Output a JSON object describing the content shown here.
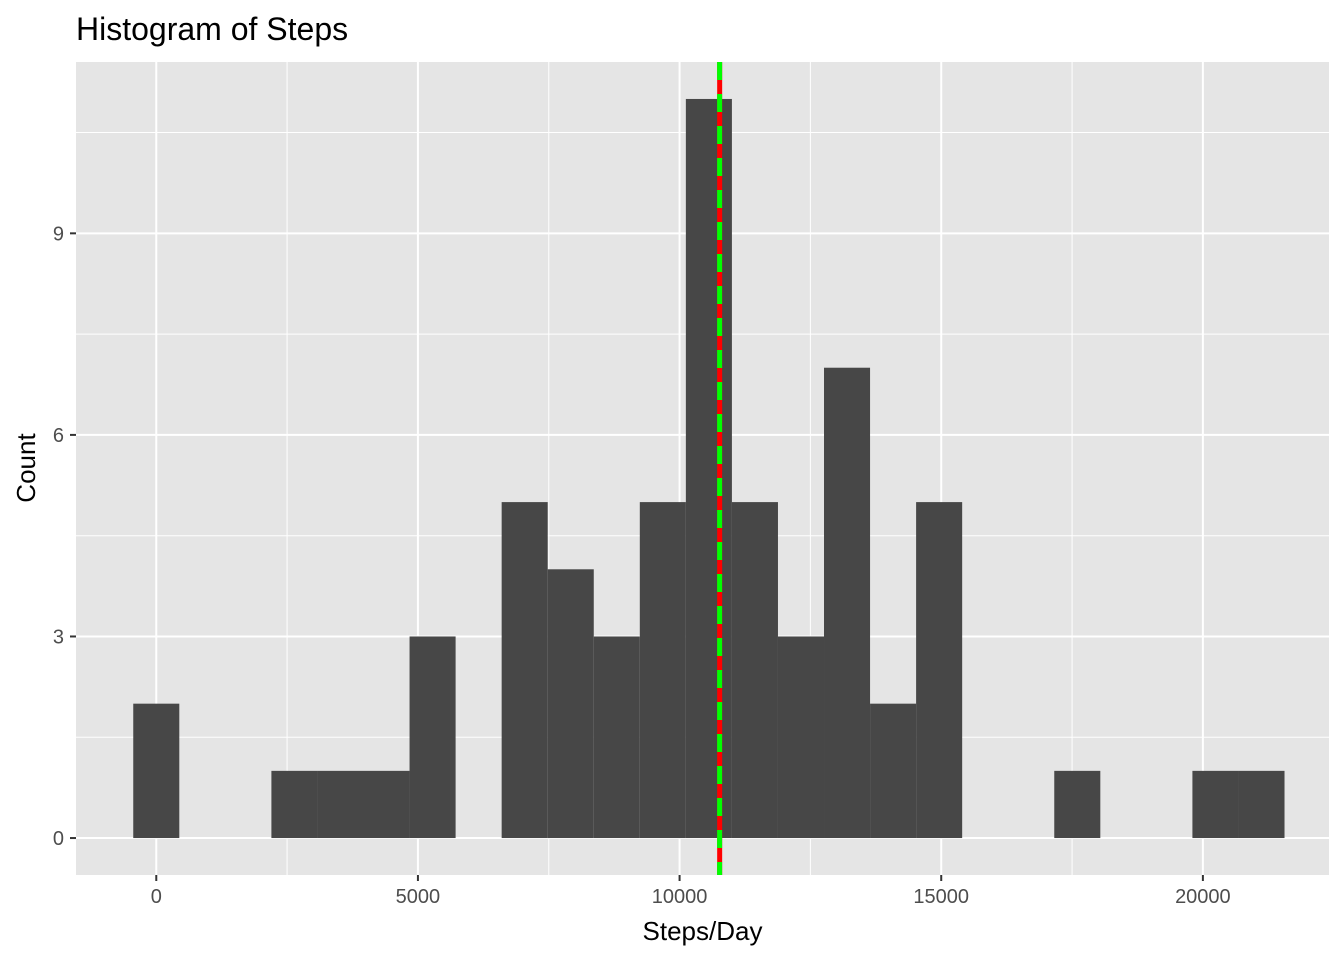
{
  "chart_data": {
    "type": "bar",
    "title": "Histogram of Steps",
    "xlabel": "Steps/Day",
    "ylabel": "Count",
    "xlim": [
      -1534,
      22410
    ],
    "ylim": [
      -0.55,
      11.55
    ],
    "x_ticks": [
      0,
      5000,
      10000,
      15000,
      20000
    ],
    "x_tick_labels": [
      "0",
      "5000",
      "10000",
      "15000",
      "20000"
    ],
    "y_ticks": [
      0,
      3,
      6,
      9
    ],
    "y_tick_labels": [
      "0",
      "3",
      "6",
      "9"
    ],
    "bin_width": 880,
    "bins": [
      {
        "x_start": -440,
        "x_end": 440,
        "count": 2
      },
      {
        "x_start": 2200,
        "x_end": 3080,
        "count": 1
      },
      {
        "x_start": 3080,
        "x_end": 3960,
        "count": 1
      },
      {
        "x_start": 3960,
        "x_end": 4840,
        "count": 1
      },
      {
        "x_start": 4840,
        "x_end": 5720,
        "count": 3
      },
      {
        "x_start": 6600,
        "x_end": 7480,
        "count": 5
      },
      {
        "x_start": 7480,
        "x_end": 8360,
        "count": 4
      },
      {
        "x_start": 8360,
        "x_end": 9240,
        "count": 3
      },
      {
        "x_start": 9240,
        "x_end": 10120,
        "count": 5
      },
      {
        "x_start": 10120,
        "x_end": 11000,
        "count": 11
      },
      {
        "x_start": 11000,
        "x_end": 11880,
        "count": 5
      },
      {
        "x_start": 11880,
        "x_end": 12760,
        "count": 3
      },
      {
        "x_start": 12760,
        "x_end": 13640,
        "count": 7
      },
      {
        "x_start": 13640,
        "x_end": 14520,
        "count": 2
      },
      {
        "x_start": 14520,
        "x_end": 15400,
        "count": 5
      },
      {
        "x_start": 17160,
        "x_end": 18040,
        "count": 1
      },
      {
        "x_start": 19800,
        "x_end": 20680,
        "count": 1
      },
      {
        "x_start": 20680,
        "x_end": 21560,
        "count": 1
      }
    ],
    "reference_lines": [
      {
        "x": 10766,
        "color": "#ff0000",
        "style": "solid"
      },
      {
        "x": 10765,
        "color": "#00ff00",
        "style": "dashed"
      }
    ],
    "colors": {
      "panel_background": "#e5e5e5",
      "grid": "#ffffff",
      "bar_fill": "#474747"
    },
    "grid": true,
    "legend": "none"
  }
}
